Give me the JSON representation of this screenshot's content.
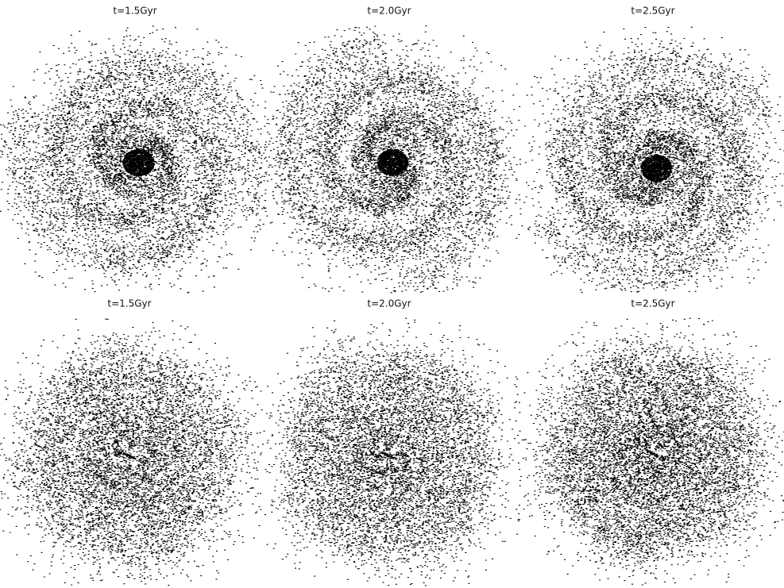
{
  "panels": [
    {
      "title": "t=1.5Gyr"
    },
    {
      "title": "t=2.0Gyr"
    },
    {
      "title": "t=2.5Gyr"
    },
    {
      "title": "t=1.5Gyr"
    },
    {
      "title": "t=2.0Gyr"
    },
    {
      "title": "t=2.5Gyr"
    }
  ]
}
